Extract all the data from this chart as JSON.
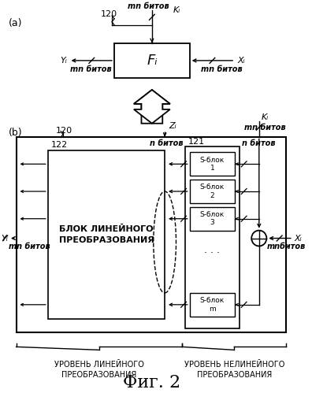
{
  "bg_color": "#ffffff",
  "fig_width": 3.96,
  "fig_height": 4.99,
  "title": "Фиг. 2",
  "label_a": "(a)",
  "label_b": "(b)",
  "label_120_a": "120",
  "label_120_b": "120",
  "label_122": "122",
  "label_121": "121",
  "label_Fi": "Fᵢ",
  "label_Ki_top": "Kᵢ",
  "label_Xi_top": "Xᵢ",
  "label_Yi_top": "Yᵢ",
  "label_mn_top_left": "mn битов",
  "label_mn_top_right": "mn битов",
  "label_mn_top_k": "mn битов",
  "label_Ki_b": "Kᵢ",
  "label_mn_Ki_b": "mn битов",
  "label_Zi": "Zᵢ",
  "label_n_bits_left": "n битов",
  "label_n_bits_right": "n битов",
  "label_Xi_b": "Xᵢ",
  "label_Yi_b": "Yᵢ",
  "label_mn_Yi_b": "mn битов",
  "label_mn_Xi_b": "mnбитов",
  "label_linear_block": "БЛОК ЛИНЕЙНОГО\nПРЕОБРАЗОВАНИЯ",
  "label_s1": "S-блок\n1",
  "label_s2": "S-блок\n2",
  "label_s3": "S-блок\n3",
  "label_sm": "S-блок\nm",
  "label_linear_level": "УРОВЕНЬ ЛИНЕЙНОГО\nПРЕОБРАЗОВАНИЯ",
  "label_nonlinear_level": "УРОВЕНЬ НЕЛИНЕЙНОГО\nПРЕОБРАЗОВАНИЯ"
}
